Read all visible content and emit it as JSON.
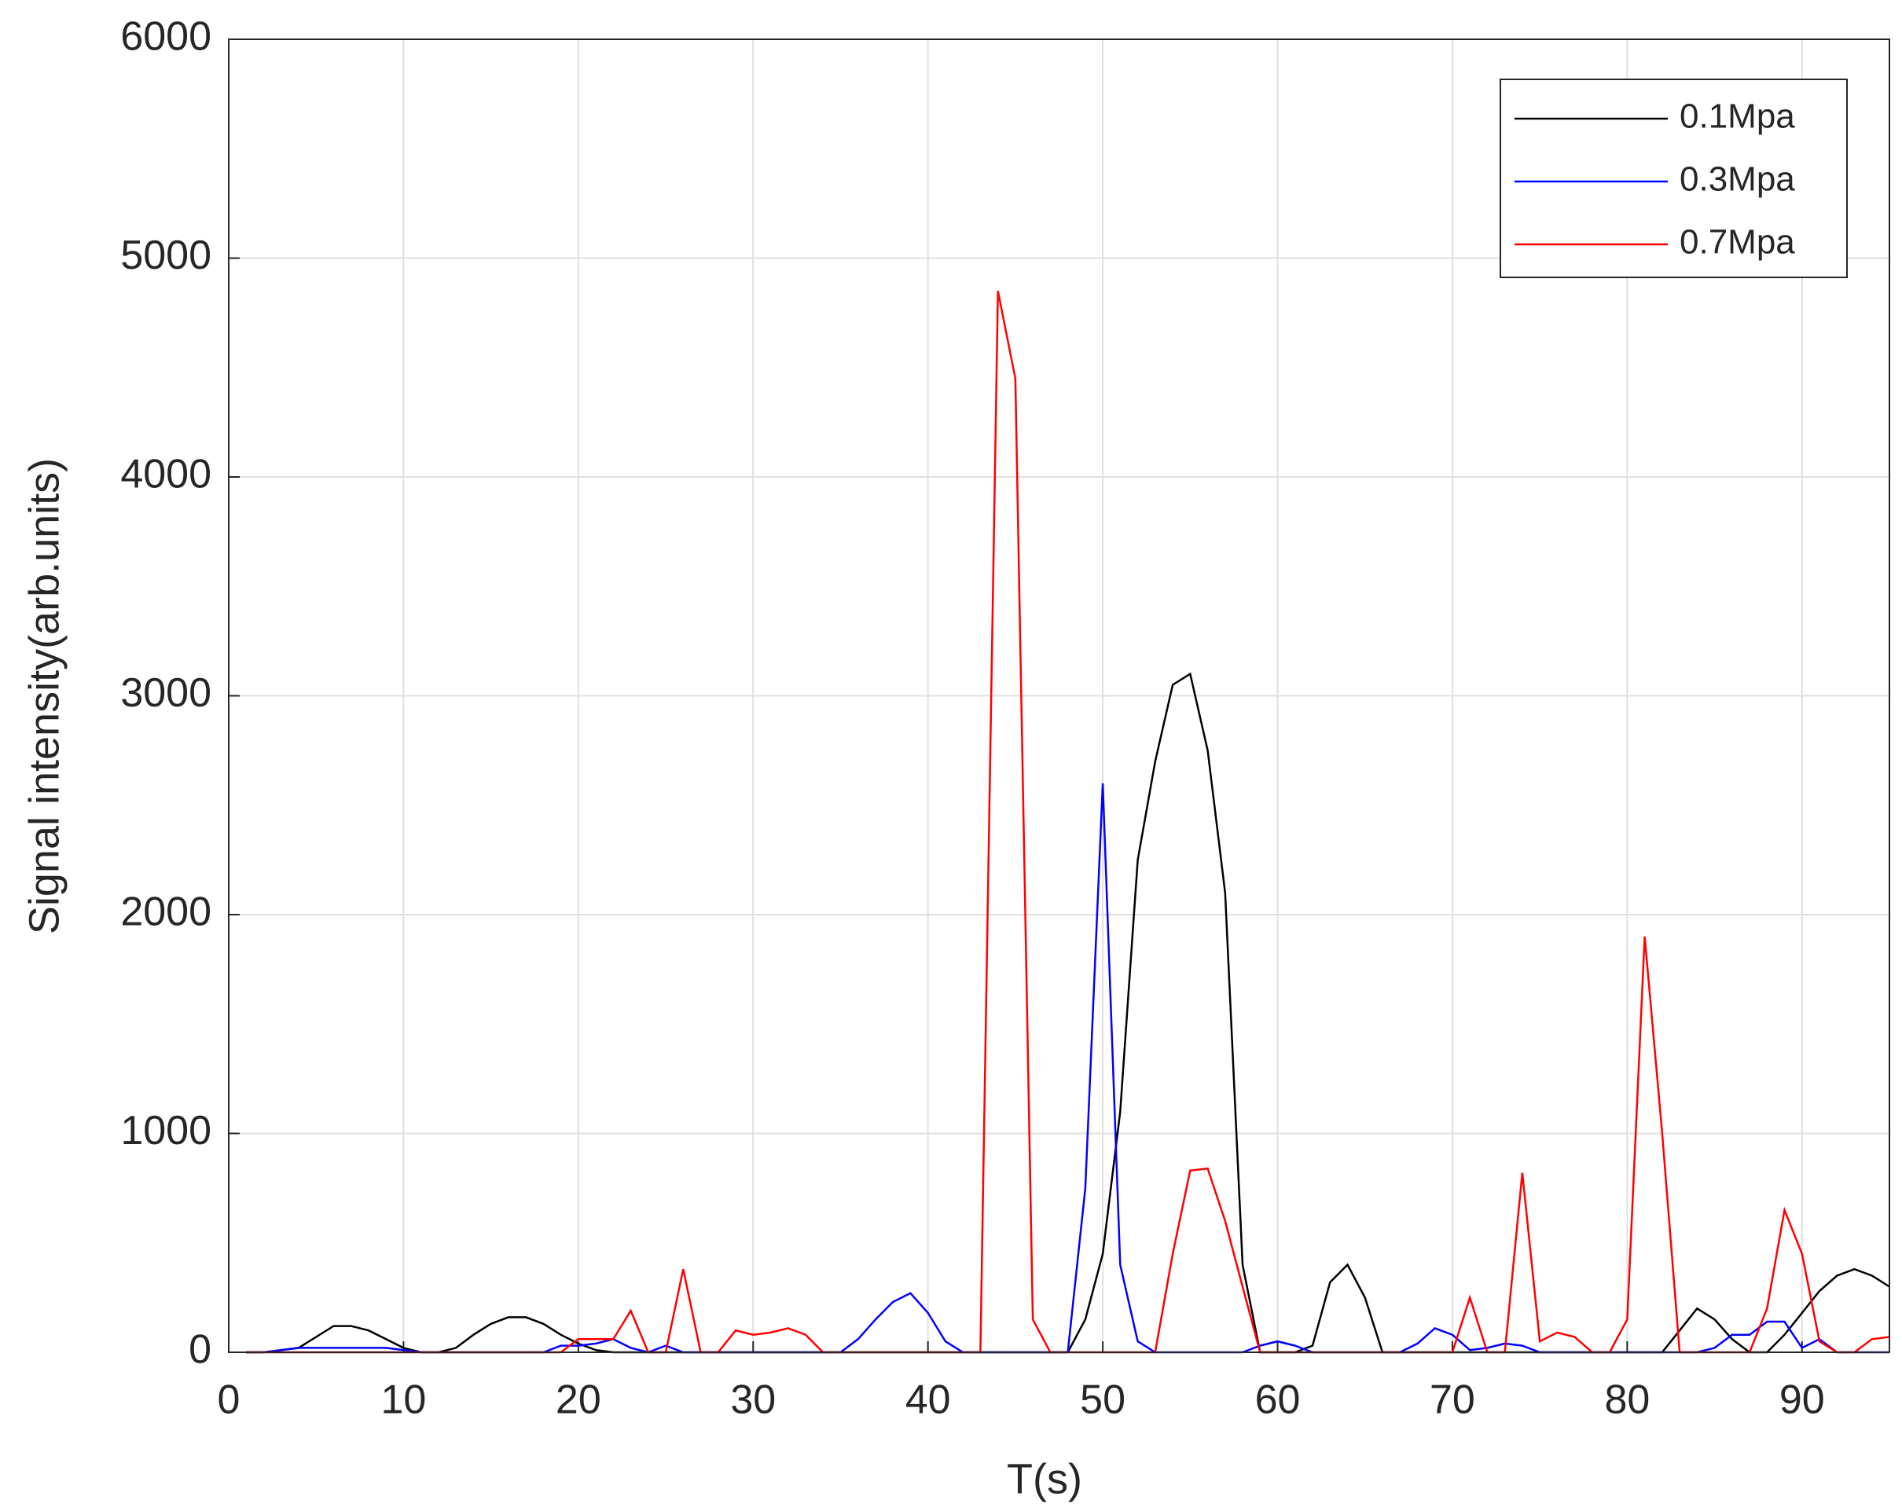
{
  "chart_data": {
    "type": "line",
    "x_label": "T(s)",
    "y_label": "Signal intensity(arb.units)",
    "x": [
      1,
      2,
      3,
      4,
      5,
      6,
      7,
      8,
      9,
      10,
      11,
      12,
      13,
      14,
      15,
      16,
      17,
      18,
      19,
      20,
      21,
      22,
      23,
      24,
      25,
      26,
      27,
      28,
      29,
      30,
      31,
      32,
      33,
      34,
      35,
      36,
      37,
      38,
      39,
      40,
      41,
      42,
      43,
      44,
      45,
      46,
      47,
      48,
      49,
      50,
      51,
      52,
      53,
      54,
      55,
      56,
      57,
      58,
      59,
      60,
      61,
      62,
      63,
      64,
      65,
      66,
      67,
      68,
      69,
      70,
      71,
      72,
      73,
      74,
      75,
      76,
      77,
      78,
      79,
      80,
      81,
      82,
      83,
      84,
      85,
      86,
      87,
      88,
      89,
      90,
      91,
      92,
      93,
      94,
      95
    ],
    "series": [
      {
        "name": "0.1Mpa",
        "color": "#000000",
        "values": [
          0,
          0,
          10,
          20,
          70,
          120,
          120,
          100,
          60,
          20,
          0,
          0,
          20,
          80,
          130,
          160,
          160,
          130,
          80,
          40,
          10,
          0,
          0,
          0,
          0,
          0,
          0,
          0,
          0,
          0,
          0,
          0,
          0,
          0,
          0,
          0,
          0,
          0,
          0,
          0,
          0,
          0,
          0,
          0,
          0,
          0,
          0,
          0,
          150,
          450,
          1100,
          2250,
          2700,
          3050,
          3100,
          2750,
          2100,
          400,
          0,
          0,
          0,
          30,
          320,
          400,
          250,
          0,
          0,
          0,
          0,
          0,
          0,
          0,
          0,
          0,
          0,
          0,
          0,
          0,
          0,
          0,
          0,
          0,
          100,
          200,
          150,
          60,
          0,
          0,
          80,
          180,
          280,
          350,
          380,
          350,
          300
        ]
      },
      {
        "name": "0.3Mpa",
        "color": "#0000ff",
        "values": [
          0,
          0,
          10,
          20,
          20,
          20,
          20,
          20,
          20,
          10,
          0,
          0,
          0,
          0,
          0,
          0,
          0,
          0,
          30,
          30,
          40,
          60,
          20,
          0,
          30,
          0,
          0,
          0,
          0,
          0,
          0,
          0,
          0,
          0,
          0,
          60,
          150,
          230,
          270,
          180,
          50,
          0,
          0,
          0,
          0,
          0,
          0,
          0,
          750,
          2600,
          400,
          50,
          0,
          0,
          0,
          0,
          0,
          0,
          30,
          50,
          30,
          0,
          0,
          0,
          0,
          0,
          0,
          40,
          110,
          80,
          10,
          20,
          40,
          30,
          0,
          0,
          0,
          0,
          0,
          0,
          0,
          0,
          0,
          0,
          20,
          80,
          80,
          140,
          140,
          20,
          60,
          0,
          0,
          0,
          0
        ]
      },
      {
        "name": "0.7Mpa",
        "color": "#ff0000",
        "values": [
          0,
          0,
          0,
          0,
          0,
          0,
          0,
          0,
          0,
          0,
          0,
          0,
          0,
          0,
          0,
          0,
          0,
          0,
          0,
          60,
          60,
          60,
          190,
          0,
          0,
          380,
          0,
          0,
          100,
          80,
          90,
          110,
          80,
          0,
          0,
          0,
          0,
          0,
          0,
          0,
          0,
          0,
          0,
          4850,
          4450,
          150,
          0,
          0,
          0,
          0,
          0,
          0,
          0,
          450,
          830,
          840,
          600,
          300,
          0,
          0,
          0,
          0,
          0,
          0,
          0,
          0,
          0,
          0,
          0,
          0,
          250,
          0,
          0,
          820,
          50,
          90,
          70,
          0,
          0,
          150,
          1900,
          1000,
          0,
          0,
          0,
          0,
          0,
          200,
          650,
          450,
          50,
          0,
          0,
          60,
          70
        ]
      }
    ],
    "xlim": [
      0,
      95
    ],
    "xticks": [
      0,
      10,
      20,
      30,
      40,
      50,
      60,
      70,
      80,
      90
    ],
    "ylim": [
      0,
      6000
    ],
    "yticks": [
      0,
      1000,
      2000,
      3000,
      4000,
      5000,
      6000
    ],
    "grid": true,
    "legend_position": "upper-right"
  }
}
